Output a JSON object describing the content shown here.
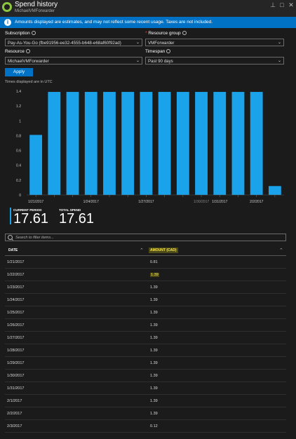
{
  "window": {
    "title": "Spend history",
    "subtitle": "MichaelVMForwarder",
    "pin": "⊥",
    "maximize": "□",
    "close": "✕"
  },
  "banner": {
    "icon": "i",
    "text": "Amounts displayed are estimates, and may not reflect some recent usage. Taxes are not included."
  },
  "filters": {
    "subscription_label": "Subscription",
    "subscription_value": "Pay-As-You-Go (fbe91956-ee32-4555-b648-e68af60f92ad)",
    "resource_group_label": "Resource group",
    "resource_group_required": "*",
    "resource_group_value": "VMForwarder",
    "resource_label": "Resource",
    "resource_value": "MichaelVMForwarder",
    "timespan_label": "Timespan",
    "timespan_value": "Past 90 days",
    "apply_label": "Apply",
    "note": "Times displayed are in UTC"
  },
  "chart_data": {
    "type": "bar",
    "categories": [
      "1/21/2017",
      "1/22/2017",
      "1/23/2017",
      "1/24/2017",
      "1/25/2017",
      "1/26/2017",
      "1/27/2017",
      "1/28/2017",
      "1/29/2017",
      "1/30/2017",
      "1/31/2017",
      "2/1/2017",
      "2/2/2017",
      "2/3/2017"
    ],
    "values": [
      0.81,
      1.39,
      1.39,
      1.39,
      1.39,
      1.39,
      1.39,
      1.39,
      1.39,
      1.39,
      1.39,
      1.39,
      1.39,
      0.12
    ],
    "x_tick_labels": [
      "1/21/2017",
      "1/24/2017",
      "1/27/2017",
      "1/30/2017",
      "1/31/2017",
      "2/2/2017"
    ],
    "y_ticks": [
      "0",
      "0.2",
      "0.4",
      "0.6",
      "0.8",
      "1",
      "1.2",
      "1.4"
    ],
    "ylim": [
      0,
      1.4
    ],
    "bar_color": "#1aa3ea",
    "grid": false
  },
  "summary": {
    "current_period_label": "CURRENT PERIOD",
    "current_period_value": "17.61",
    "total_spend_label": "TOTAL SPEND",
    "total_spend_value": "17.61"
  },
  "table": {
    "search_placeholder": "Search to filter items...",
    "col_date": "DATE",
    "col_amount": "AMOUNT (CAD)",
    "rows": [
      {
        "date": "1/21/2017",
        "amount": "0.81"
      },
      {
        "date": "1/22/2017",
        "amount": "1.39"
      },
      {
        "date": "1/23/2017",
        "amount": "1.39"
      },
      {
        "date": "1/24/2017",
        "amount": "1.39"
      },
      {
        "date": "1/25/2017",
        "amount": "1.39"
      },
      {
        "date": "1/26/2017",
        "amount": "1.39"
      },
      {
        "date": "1/27/2017",
        "amount": "1.39"
      },
      {
        "date": "1/28/2017",
        "amount": "1.39"
      },
      {
        "date": "1/29/2017",
        "amount": "1.39"
      },
      {
        "date": "1/30/2017",
        "amount": "1.39"
      },
      {
        "date": "1/31/2017",
        "amount": "1.39"
      },
      {
        "date": "2/1/2017",
        "amount": "1.39"
      },
      {
        "date": "2/2/2017",
        "amount": "1.39"
      },
      {
        "date": "2/3/2017",
        "amount": "0.12"
      }
    ]
  }
}
